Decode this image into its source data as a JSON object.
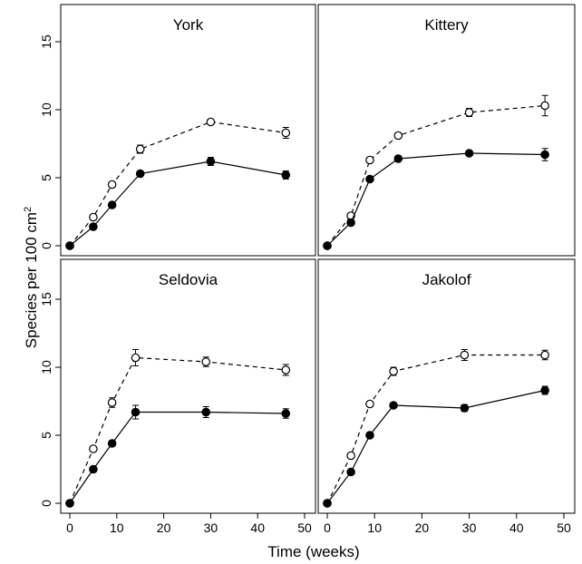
{
  "figure": {
    "ylabel_main": "Species per 100 cm",
    "ylabel_sup": "2",
    "xlabel": "Time (weeks)"
  },
  "chart_data": [
    {
      "type": "line",
      "title": "York",
      "xlim": [
        0,
        50
      ],
      "ylim": [
        0,
        15
      ],
      "x_ticks": [
        0,
        10,
        20,
        30,
        40,
        50
      ],
      "y_ticks": [
        0,
        5,
        10,
        15
      ],
      "series": [
        {
          "style": "open-dashed",
          "x": [
            0,
            5,
            9,
            15,
            30,
            46
          ],
          "y": [
            0,
            2.1,
            4.5,
            7.1,
            9.1,
            8.3
          ],
          "err": [
            0,
            0.15,
            0.15,
            0.3,
            0.2,
            0.4
          ]
        },
        {
          "style": "filled-solid",
          "x": [
            0,
            5,
            9,
            15,
            30,
            46
          ],
          "y": [
            0,
            1.4,
            3.0,
            5.3,
            6.2,
            5.2
          ],
          "err": [
            0,
            0.1,
            0.15,
            0.15,
            0.3,
            0.3
          ]
        }
      ]
    },
    {
      "type": "line",
      "title": "Kittery",
      "xlim": [
        0,
        50
      ],
      "ylim": [
        0,
        15
      ],
      "x_ticks": [
        0,
        10,
        20,
        30,
        40,
        50
      ],
      "y_ticks": [
        0,
        5,
        10,
        15
      ],
      "series": [
        {
          "style": "open-dashed",
          "x": [
            0,
            5,
            9,
            15,
            30,
            46
          ],
          "y": [
            0,
            2.2,
            6.3,
            8.1,
            9.8,
            10.3
          ],
          "err": [
            0,
            0.15,
            0.15,
            0.2,
            0.3,
            0.75
          ]
        },
        {
          "style": "filled-solid",
          "x": [
            0,
            5,
            9,
            15,
            30,
            46
          ],
          "y": [
            0,
            1.7,
            4.9,
            6.4,
            6.8,
            6.7
          ],
          "err": [
            0,
            0.15,
            0.15,
            0.2,
            0.15,
            0.45
          ]
        }
      ]
    },
    {
      "type": "line",
      "title": "Seldovia",
      "xlim": [
        0,
        50
      ],
      "ylim": [
        0,
        15
      ],
      "x_ticks": [
        0,
        10,
        20,
        30,
        40,
        50
      ],
      "y_ticks": [
        0,
        5,
        10,
        15
      ],
      "series": [
        {
          "style": "open-dashed",
          "x": [
            0,
            5,
            9,
            14,
            29,
            46
          ],
          "y": [
            0,
            4.0,
            7.4,
            10.7,
            10.4,
            9.8
          ],
          "err": [
            0,
            0.15,
            0.35,
            0.6,
            0.35,
            0.4
          ]
        },
        {
          "style": "filled-solid",
          "x": [
            0,
            5,
            9,
            14,
            29,
            46
          ],
          "y": [
            0,
            2.5,
            4.4,
            6.7,
            6.7,
            6.6
          ],
          "err": [
            0,
            0.1,
            0.15,
            0.5,
            0.4,
            0.35
          ]
        }
      ]
    },
    {
      "type": "line",
      "title": "Jakolof",
      "xlim": [
        0,
        50
      ],
      "ylim": [
        0,
        15
      ],
      "x_ticks": [
        0,
        10,
        20,
        30,
        40,
        50
      ],
      "y_ticks": [
        0,
        5,
        10,
        15
      ],
      "series": [
        {
          "style": "open-dashed",
          "x": [
            0,
            5,
            9,
            14,
            29,
            46
          ],
          "y": [
            0,
            3.5,
            7.3,
            9.7,
            10.9,
            10.9
          ],
          "err": [
            0,
            0.15,
            0.2,
            0.3,
            0.4,
            0.35
          ]
        },
        {
          "style": "filled-solid",
          "x": [
            0,
            5,
            9,
            14,
            29,
            46
          ],
          "y": [
            0,
            2.3,
            5.0,
            7.2,
            7.0,
            8.3
          ],
          "err": [
            0,
            0.1,
            0.15,
            0.15,
            0.25,
            0.3
          ]
        }
      ]
    }
  ]
}
